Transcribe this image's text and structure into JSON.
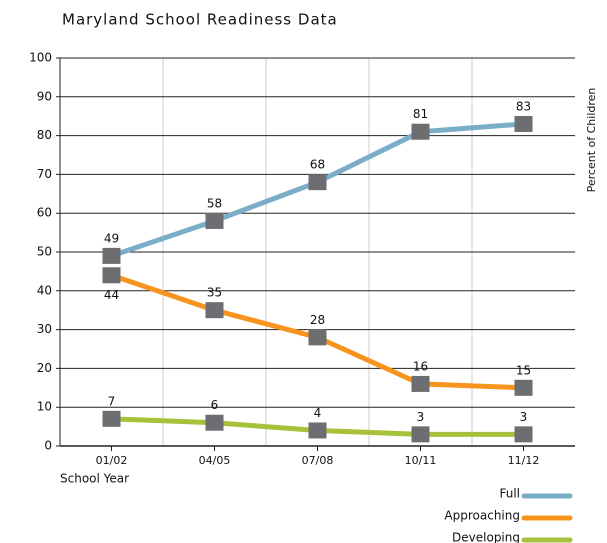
{
  "chart_data": {
    "type": "line",
    "title": "Maryland School Readiness Data",
    "x_label": "School Year",
    "y_label": "Percent of Children",
    "categories": [
      "01/02",
      "04/05",
      "07/08",
      "10/11",
      "11/12"
    ],
    "series": [
      {
        "name": "Full",
        "color": "#7aaec8",
        "values": [
          49,
          58,
          68,
          81,
          83
        ]
      },
      {
        "name": "Approaching",
        "color": "#f7941d",
        "values": [
          44,
          35,
          28,
          16,
          15
        ]
      },
      {
        "name": "Developing",
        "color": "#a6c23a",
        "values": [
          7,
          6,
          4,
          3,
          3
        ]
      }
    ],
    "ylim": [
      0,
      100
    ],
    "yticks": [
      0,
      10,
      20,
      30,
      40,
      50,
      60,
      70,
      80,
      90,
      100
    ],
    "grid": true,
    "legend": "bottom-right",
    "marker_color": "#6d6e71"
  }
}
